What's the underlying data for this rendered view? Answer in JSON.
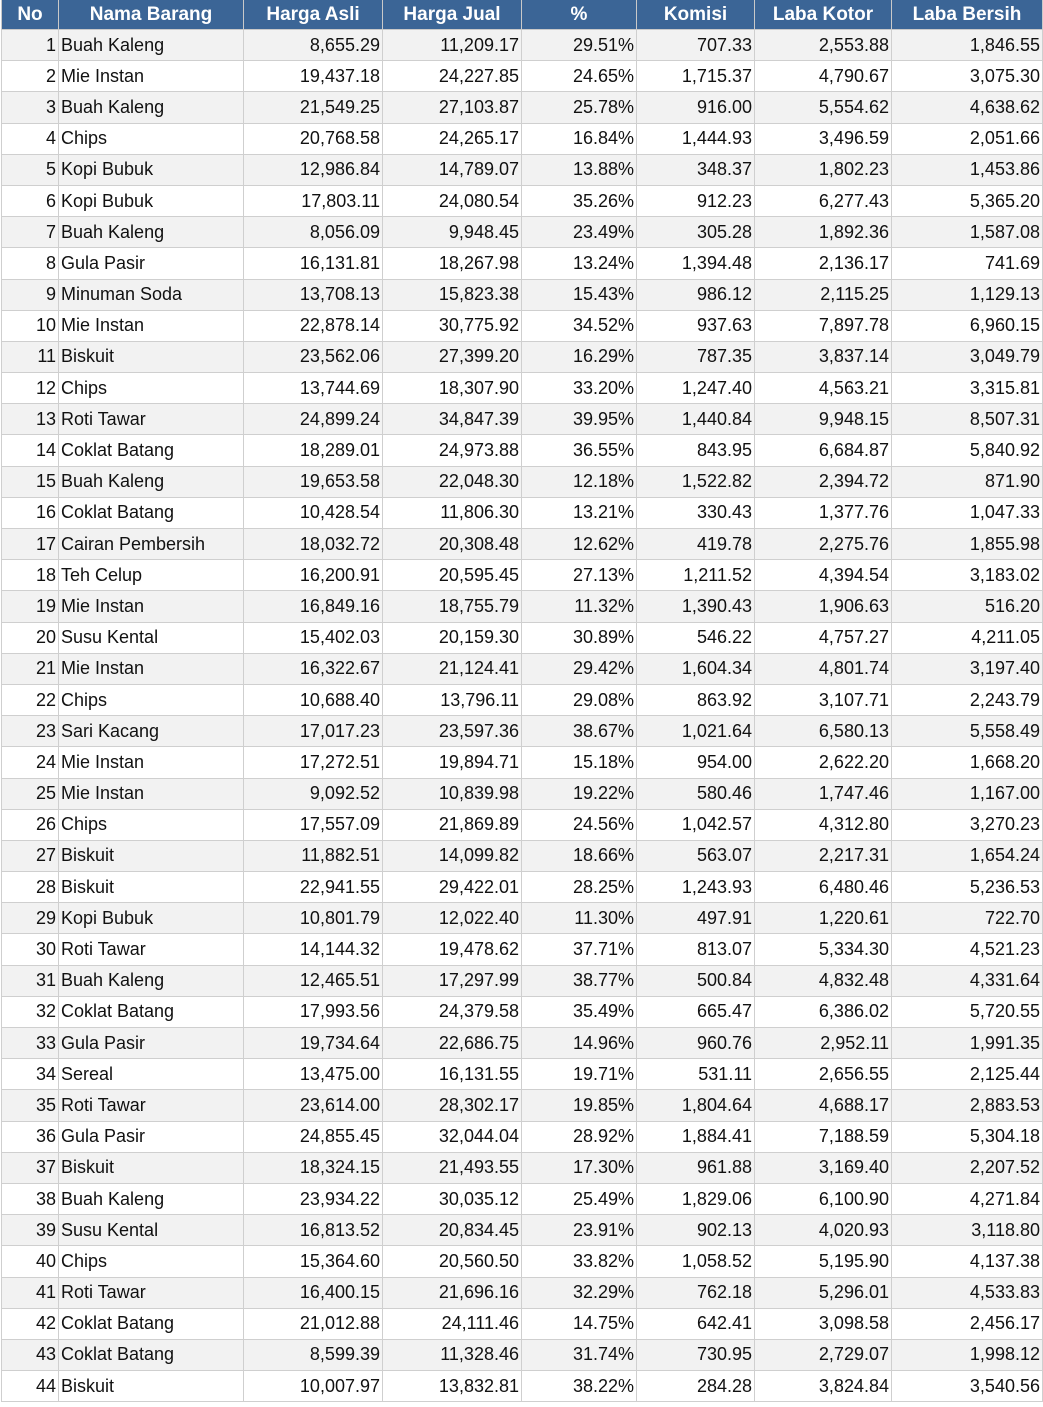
{
  "colors": {
    "header_bg": "#3b6596",
    "header_text": "#ffffff",
    "row_alt": "#f2f2f2",
    "row": "#ffffff"
  },
  "columns": [
    "No",
    "Nama Barang",
    "Harga Asli",
    "Harga Jual",
    "%",
    "Komisi",
    "Laba Kotor",
    "Laba Bersih"
  ],
  "rows": [
    [
      "1",
      "Buah Kaleng",
      "8,655.29",
      "11,209.17",
      "29.51%",
      "707.33",
      "2,553.88",
      "1,846.55"
    ],
    [
      "2",
      "Mie Instan",
      "19,437.18",
      "24,227.85",
      "24.65%",
      "1,715.37",
      "4,790.67",
      "3,075.30"
    ],
    [
      "3",
      "Buah Kaleng",
      "21,549.25",
      "27,103.87",
      "25.78%",
      "916.00",
      "5,554.62",
      "4,638.62"
    ],
    [
      "4",
      "Chips",
      "20,768.58",
      "24,265.17",
      "16.84%",
      "1,444.93",
      "3,496.59",
      "2,051.66"
    ],
    [
      "5",
      "Kopi Bubuk",
      "12,986.84",
      "14,789.07",
      "13.88%",
      "348.37",
      "1,802.23",
      "1,453.86"
    ],
    [
      "6",
      "Kopi Bubuk",
      "17,803.11",
      "24,080.54",
      "35.26%",
      "912.23",
      "6,277.43",
      "5,365.20"
    ],
    [
      "7",
      "Buah Kaleng",
      "8,056.09",
      "9,948.45",
      "23.49%",
      "305.28",
      "1,892.36",
      "1,587.08"
    ],
    [
      "8",
      "Gula Pasir",
      "16,131.81",
      "18,267.98",
      "13.24%",
      "1,394.48",
      "2,136.17",
      "741.69"
    ],
    [
      "9",
      "Minuman Soda",
      "13,708.13",
      "15,823.38",
      "15.43%",
      "986.12",
      "2,115.25",
      "1,129.13"
    ],
    [
      "10",
      "Mie Instan",
      "22,878.14",
      "30,775.92",
      "34.52%",
      "937.63",
      "7,897.78",
      "6,960.15"
    ],
    [
      "11",
      "Biskuit",
      "23,562.06",
      "27,399.20",
      "16.29%",
      "787.35",
      "3,837.14",
      "3,049.79"
    ],
    [
      "12",
      "Chips",
      "13,744.69",
      "18,307.90",
      "33.20%",
      "1,247.40",
      "4,563.21",
      "3,315.81"
    ],
    [
      "13",
      "Roti Tawar",
      "24,899.24",
      "34,847.39",
      "39.95%",
      "1,440.84",
      "9,948.15",
      "8,507.31"
    ],
    [
      "14",
      "Coklat Batang",
      "18,289.01",
      "24,973.88",
      "36.55%",
      "843.95",
      "6,684.87",
      "5,840.92"
    ],
    [
      "15",
      "Buah Kaleng",
      "19,653.58",
      "22,048.30",
      "12.18%",
      "1,522.82",
      "2,394.72",
      "871.90"
    ],
    [
      "16",
      "Coklat Batang",
      "10,428.54",
      "11,806.30",
      "13.21%",
      "330.43",
      "1,377.76",
      "1,047.33"
    ],
    [
      "17",
      "Cairan Pembersih",
      "18,032.72",
      "20,308.48",
      "12.62%",
      "419.78",
      "2,275.76",
      "1,855.98"
    ],
    [
      "18",
      "Teh Celup",
      "16,200.91",
      "20,595.45",
      "27.13%",
      "1,211.52",
      "4,394.54",
      "3,183.02"
    ],
    [
      "19",
      "Mie Instan",
      "16,849.16",
      "18,755.79",
      "11.32%",
      "1,390.43",
      "1,906.63",
      "516.20"
    ],
    [
      "20",
      "Susu Kental",
      "15,402.03",
      "20,159.30",
      "30.89%",
      "546.22",
      "4,757.27",
      "4,211.05"
    ],
    [
      "21",
      "Mie Instan",
      "16,322.67",
      "21,124.41",
      "29.42%",
      "1,604.34",
      "4,801.74",
      "3,197.40"
    ],
    [
      "22",
      "Chips",
      "10,688.40",
      "13,796.11",
      "29.08%",
      "863.92",
      "3,107.71",
      "2,243.79"
    ],
    [
      "23",
      "Sari Kacang",
      "17,017.23",
      "23,597.36",
      "38.67%",
      "1,021.64",
      "6,580.13",
      "5,558.49"
    ],
    [
      "24",
      "Mie Instan",
      "17,272.51",
      "19,894.71",
      "15.18%",
      "954.00",
      "2,622.20",
      "1,668.20"
    ],
    [
      "25",
      "Mie Instan",
      "9,092.52",
      "10,839.98",
      "19.22%",
      "580.46",
      "1,747.46",
      "1,167.00"
    ],
    [
      "26",
      "Chips",
      "17,557.09",
      "21,869.89",
      "24.56%",
      "1,042.57",
      "4,312.80",
      "3,270.23"
    ],
    [
      "27",
      "Biskuit",
      "11,882.51",
      "14,099.82",
      "18.66%",
      "563.07",
      "2,217.31",
      "1,654.24"
    ],
    [
      "28",
      "Biskuit",
      "22,941.55",
      "29,422.01",
      "28.25%",
      "1,243.93",
      "6,480.46",
      "5,236.53"
    ],
    [
      "29",
      "Kopi Bubuk",
      "10,801.79",
      "12,022.40",
      "11.30%",
      "497.91",
      "1,220.61",
      "722.70"
    ],
    [
      "30",
      "Roti Tawar",
      "14,144.32",
      "19,478.62",
      "37.71%",
      "813.07",
      "5,334.30",
      "4,521.23"
    ],
    [
      "31",
      "Buah Kaleng",
      "12,465.51",
      "17,297.99",
      "38.77%",
      "500.84",
      "4,832.48",
      "4,331.64"
    ],
    [
      "32",
      "Coklat Batang",
      "17,993.56",
      "24,379.58",
      "35.49%",
      "665.47",
      "6,386.02",
      "5,720.55"
    ],
    [
      "33",
      "Gula Pasir",
      "19,734.64",
      "22,686.75",
      "14.96%",
      "960.76",
      "2,952.11",
      "1,991.35"
    ],
    [
      "34",
      "Sereal",
      "13,475.00",
      "16,131.55",
      "19.71%",
      "531.11",
      "2,656.55",
      "2,125.44"
    ],
    [
      "35",
      "Roti Tawar",
      "23,614.00",
      "28,302.17",
      "19.85%",
      "1,804.64",
      "4,688.17",
      "2,883.53"
    ],
    [
      "36",
      "Gula Pasir",
      "24,855.45",
      "32,044.04",
      "28.92%",
      "1,884.41",
      "7,188.59",
      "5,304.18"
    ],
    [
      "37",
      "Biskuit",
      "18,324.15",
      "21,493.55",
      "17.30%",
      "961.88",
      "3,169.40",
      "2,207.52"
    ],
    [
      "38",
      "Buah Kaleng",
      "23,934.22",
      "30,035.12",
      "25.49%",
      "1,829.06",
      "6,100.90",
      "4,271.84"
    ],
    [
      "39",
      "Susu Kental",
      "16,813.52",
      "20,834.45",
      "23.91%",
      "902.13",
      "4,020.93",
      "3,118.80"
    ],
    [
      "40",
      "Chips",
      "15,364.60",
      "20,560.50",
      "33.82%",
      "1,058.52",
      "5,195.90",
      "4,137.38"
    ],
    [
      "41",
      "Roti Tawar",
      "16,400.15",
      "21,696.16",
      "32.29%",
      "762.18",
      "5,296.01",
      "4,533.83"
    ],
    [
      "42",
      "Coklat Batang",
      "21,012.88",
      "24,111.46",
      "14.75%",
      "642.41",
      "3,098.58",
      "2,456.17"
    ],
    [
      "43",
      "Coklat Batang",
      "8,599.39",
      "11,328.46",
      "31.74%",
      "730.95",
      "2,729.07",
      "1,998.12"
    ],
    [
      "44",
      "Biskuit",
      "10,007.97",
      "13,832.81",
      "38.22%",
      "284.28",
      "3,824.84",
      "3,540.56"
    ]
  ]
}
